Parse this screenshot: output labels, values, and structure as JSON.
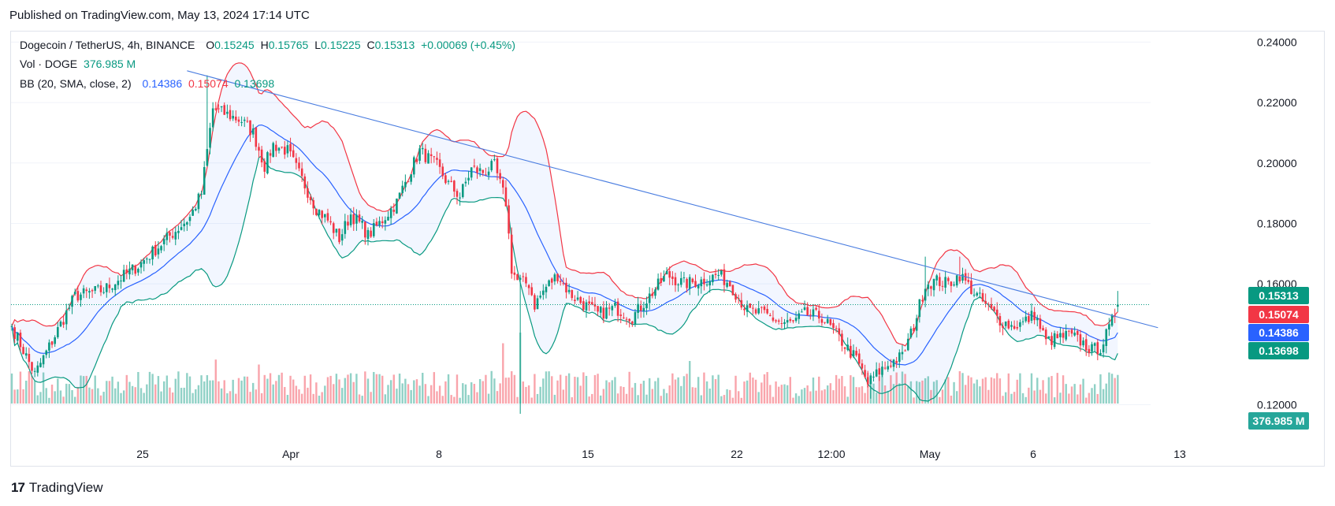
{
  "header": {
    "published": "Published on TradingView.com, May 13, 2024 17:14 UTC"
  },
  "legend": {
    "symbol": "Dogecoin / TetherUS, 4h, BINANCE",
    "o_label": "O",
    "o": "0.15245",
    "h_label": "H",
    "h": "0.15765",
    "l_label": "L",
    "l": "0.15225",
    "c_label": "C",
    "c": "0.15313",
    "change": "+0.00069 (+0.45%)",
    "vol_label": "Vol · DOGE",
    "vol": "376.985 M",
    "bb_label": "BB (20, SMA, close, 2)",
    "bb_basis": "0.14386",
    "bb_upper": "0.15074",
    "bb_lower": "0.13698"
  },
  "badges": {
    "price": "0.15313",
    "upper": "0.15074",
    "basis": "0.14386",
    "lower": "0.13698",
    "volume": "376.985 M"
  },
  "colors": {
    "up": "#089981",
    "down": "#f23645",
    "basis": "#2962ff",
    "upper": "#f23645",
    "lower": "#089981",
    "band_fill": "#2962ff",
    "trendline": "#4a7de0"
  },
  "footer": {
    "brand": "TradingView"
  },
  "chart_data": {
    "type": "candlestick",
    "title": "Dogecoin / TetherUS, 4h, BINANCE",
    "ylim": [
      0.111,
      0.2435
    ],
    "y_ticks": [
      "0.24000",
      "0.22000",
      "0.20000",
      "0.18000",
      "0.16000",
      "0.12000"
    ],
    "x_ticks": [
      "25",
      "Apr",
      "8",
      "15",
      "22",
      "12:00",
      "May",
      "6",
      "13"
    ],
    "bars": 386,
    "close_anchors": [
      [
        0,
        0.146
      ],
      [
        8,
        0.13
      ],
      [
        14,
        0.141
      ],
      [
        22,
        0.156
      ],
      [
        32,
        0.158
      ],
      [
        44,
        0.166
      ],
      [
        54,
        0.175
      ],
      [
        62,
        0.182
      ],
      [
        66,
        0.19
      ],
      [
        70,
        0.218
      ],
      [
        80,
        0.214
      ],
      [
        84,
        0.21
      ],
      [
        88,
        0.199
      ],
      [
        91,
        0.206
      ],
      [
        96,
        0.204
      ],
      [
        106,
        0.185
      ],
      [
        110,
        0.181
      ],
      [
        114,
        0.175
      ],
      [
        118,
        0.183
      ],
      [
        122,
        0.179
      ],
      [
        124,
        0.176
      ],
      [
        128,
        0.18
      ],
      [
        134,
        0.187
      ],
      [
        138,
        0.196
      ],
      [
        142,
        0.204
      ],
      [
        148,
        0.199
      ],
      [
        152,
        0.193
      ],
      [
        156,
        0.189
      ],
      [
        160,
        0.198
      ],
      [
        164,
        0.197
      ],
      [
        168,
        0.199
      ],
      [
        172,
        0.187
      ],
      [
        174,
        0.165
      ],
      [
        176,
        0.161
      ],
      [
        180,
        0.16
      ],
      [
        182,
        0.153
      ],
      [
        186,
        0.159
      ],
      [
        190,
        0.163
      ],
      [
        194,
        0.157
      ],
      [
        198,
        0.154
      ],
      [
        204,
        0.15
      ],
      [
        210,
        0.152
      ],
      [
        216,
        0.149
      ],
      [
        222,
        0.156
      ],
      [
        228,
        0.163
      ],
      [
        234,
        0.16
      ],
      [
        240,
        0.161
      ],
      [
        246,
        0.163
      ],
      [
        250,
        0.16
      ],
      [
        256,
        0.151
      ],
      [
        262,
        0.15
      ],
      [
        268,
        0.147
      ],
      [
        272,
        0.147
      ],
      [
        276,
        0.15
      ],
      [
        282,
        0.149
      ],
      [
        288,
        0.142
      ],
      [
        294,
        0.135
      ],
      [
        298,
        0.127
      ],
      [
        302,
        0.131
      ],
      [
        306,
        0.134
      ],
      [
        310,
        0.136
      ],
      [
        314,
        0.146
      ],
      [
        318,
        0.16
      ],
      [
        322,
        0.161
      ],
      [
        326,
        0.16
      ],
      [
        330,
        0.163
      ],
      [
        336,
        0.156
      ],
      [
        340,
        0.152
      ],
      [
        344,
        0.148
      ],
      [
        348,
        0.146
      ],
      [
        352,
        0.147
      ],
      [
        356,
        0.15
      ],
      [
        360,
        0.141
      ],
      [
        364,
        0.142
      ],
      [
        368,
        0.143
      ],
      [
        372,
        0.141
      ],
      [
        376,
        0.138
      ],
      [
        379,
        0.139
      ],
      [
        382,
        0.145
      ],
      [
        385,
        0.15313
      ]
    ],
    "wick_extremes": [
      {
        "bar": 68,
        "value": 0.229
      },
      {
        "bar": 177,
        "value": 0.117
      },
      {
        "bar": 177,
        "value": 0.163
      },
      {
        "bar": 318,
        "value": 0.169
      },
      {
        "bar": 330,
        "value": 0.169
      },
      {
        "bar": 299,
        "value": 0.122
      },
      {
        "bar": 385,
        "value": 0.15765
      }
    ],
    "trendline": {
      "start": {
        "bar": 61,
        "value": 0.2305
      },
      "end": {
        "bar": 399,
        "value": 0.1455
      }
    },
    "bollinger": {
      "period": 20,
      "stddev": 2,
      "last_basis": 0.14386,
      "last_upper": 0.15074,
      "last_lower": 0.13698
    },
    "volume": {
      "last": "376.985 M",
      "spikes": [
        {
          "bar": 171,
          "rel": 0.85
        },
        {
          "bar": 177,
          "rel": 1.0
        },
        {
          "bar": 236,
          "rel": 0.6
        },
        {
          "bar": 71,
          "rel": 0.62
        },
        {
          "bar": 86,
          "rel": 0.55
        }
      ]
    },
    "last_price": 0.15313
  }
}
